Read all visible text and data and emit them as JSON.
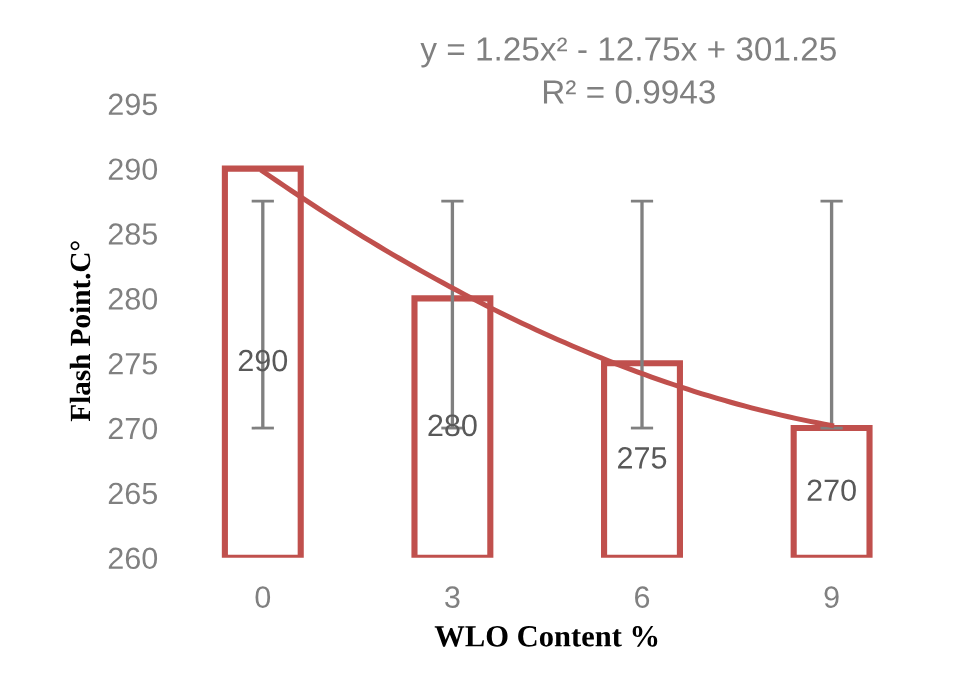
{
  "chart_data": {
    "type": "bar",
    "xlabel": "WLO Content %",
    "ylabel": "Flash Point.C°",
    "categories": [
      "0",
      "3",
      "6",
      "9"
    ],
    "series": [
      {
        "color": "#c0504d",
        "values": [
          290,
          280,
          275,
          270
        ],
        "value_labels": [
          "290",
          "280",
          "275",
          "270"
        ],
        "errors": [
          [
            270,
            287.5
          ],
          [
            270,
            287.5
          ],
          [
            270,
            287.5
          ],
          [
            270,
            287.5
          ]
        ]
      },
      {
        "type": "line",
        "color": "#c0504d",
        "values": [
          289.8,
          280.8,
          274.2,
          270.2
        ]
      }
    ],
    "ylim": [
      260,
      295
    ],
    "yticks": [
      260,
      265,
      270,
      275,
      280,
      285,
      290,
      295
    ],
    "grid": false,
    "legend": false,
    "annotations": [
      "y = 1.25x² - 12.75x + 301.25",
      "R² = 0.9943"
    ]
  }
}
